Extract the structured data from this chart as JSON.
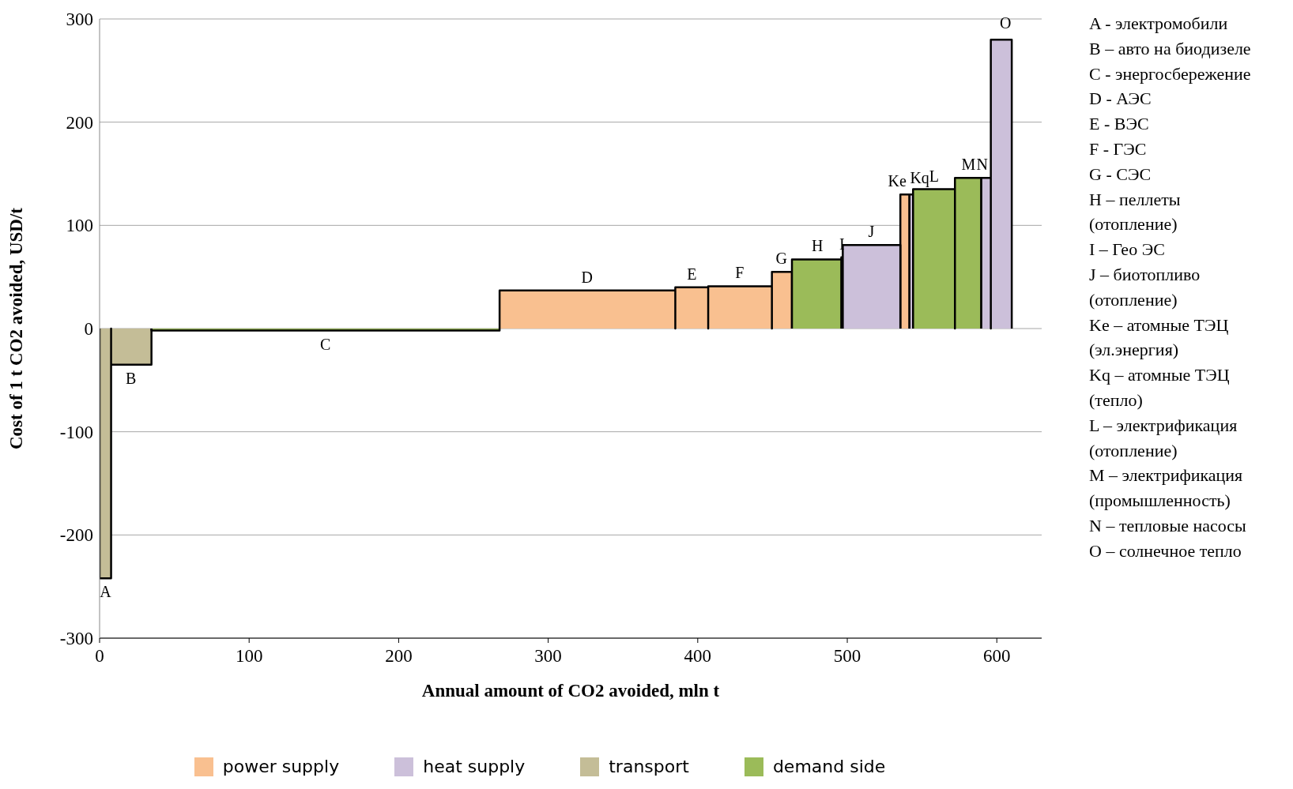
{
  "chart_data": {
    "type": "area",
    "xlabel": "Annual amount of CO2 avoided, mln t",
    "ylabel": "Cost of 1 t CO2 avoided, USD/t",
    "xlim": [
      0,
      630
    ],
    "xticks": [
      0,
      100,
      200,
      300,
      400,
      500,
      600
    ],
    "ylim": [
      -300,
      300
    ],
    "yticks": [
      -300,
      -200,
      -100,
      0,
      100,
      200,
      300
    ],
    "grid": "y",
    "legend": "bottom",
    "series": [
      {
        "name": "power supply",
        "color": "#f9c090",
        "x": [
          267.5,
          267.5,
          385,
          385,
          385,
          407,
          407,
          407,
          449.6,
          449.6,
          449.6,
          463,
          463,
          480,
          496,
          496,
          497,
          497,
          520,
          535.5,
          535.5,
          541.6,
          541.6
        ],
        "values": [
          0,
          37,
          37,
          0,
          40,
          40,
          0,
          41,
          41,
          0,
          55,
          55,
          0,
          null,
          0,
          69,
          69,
          0,
          null,
          0,
          130,
          130,
          0
        ]
      },
      {
        "name": "heat supply",
        "color": "#ccc0da",
        "x": [
          497,
          497,
          535.5,
          535.5,
          538,
          541.6,
          541.6,
          544,
          544,
          560,
          589.5,
          589.5,
          596,
          596,
          596,
          610,
          610
        ],
        "values": [
          0,
          81,
          81,
          0,
          null,
          0,
          130,
          130,
          0,
          null,
          0,
          146,
          146,
          0,
          280,
          280,
          0
        ]
      },
      {
        "name": "transport",
        "color": "#c4bd97",
        "x": [
          0,
          0,
          7.7,
          7.7,
          7.7,
          34.7,
          34.7
        ],
        "values": [
          0,
          -242,
          -242,
          0,
          -35,
          -35,
          0
        ]
      },
      {
        "name": "demand side",
        "color": "#9bbb59",
        "x": [
          34.7,
          34.7,
          267.5,
          267.5,
          350,
          463,
          463,
          496,
          496,
          520,
          544,
          544,
          572,
          572,
          572,
          589.5,
          589.5
        ],
        "values": [
          0,
          -2,
          -2,
          0,
          null,
          0,
          67,
          67,
          0,
          null,
          0,
          135,
          135,
          0,
          146,
          146,
          0
        ]
      }
    ],
    "annotations": [
      {
        "text": "A",
        "x": 4,
        "y": -242
      },
      {
        "text": "B",
        "x": 21,
        "y": -35
      },
      {
        "text": "C",
        "x": 151,
        "y": -2
      },
      {
        "text": "D",
        "x": 326,
        "y": 37
      },
      {
        "text": "E",
        "x": 396,
        "y": 40
      },
      {
        "text": "F",
        "x": 428,
        "y": 41
      },
      {
        "text": "G",
        "x": 456,
        "y": 55
      },
      {
        "text": "H",
        "x": 480,
        "y": 67
      },
      {
        "text": "I",
        "x": 496.5,
        "y": 69
      },
      {
        "text": "J",
        "x": 516,
        "y": 81
      },
      {
        "text": "Ke",
        "x": 538.5,
        "y": 130
      },
      {
        "text": "Kq",
        "x": 543,
        "y": 130
      },
      {
        "text": "L",
        "x": 558,
        "y": 135
      },
      {
        "text": "M",
        "x": 581,
        "y": 146
      },
      {
        "text": "N",
        "x": 593,
        "y": 146
      },
      {
        "text": "O",
        "x": 603,
        "y": 280
      },
      "A - электромобили",
      "B – авто на биодизеле",
      "C - энергосбережение",
      "D - АЭС",
      "E - ВЭС",
      "F - ГЭС",
      "G - СЭС",
      "H – пеллеты (отопление)",
      "I – Гео ЭС",
      "J – биотопливо (отопление)",
      "Ke – атомные ТЭЦ (эл.энергия)",
      "Kq – атомные ТЭЦ (тепло)",
      "L – электрификация (отопление)",
      "M – электрификация (промышленность)",
      "N – тепловые насосы",
      "O – солнечное тепло"
    ]
  }
}
